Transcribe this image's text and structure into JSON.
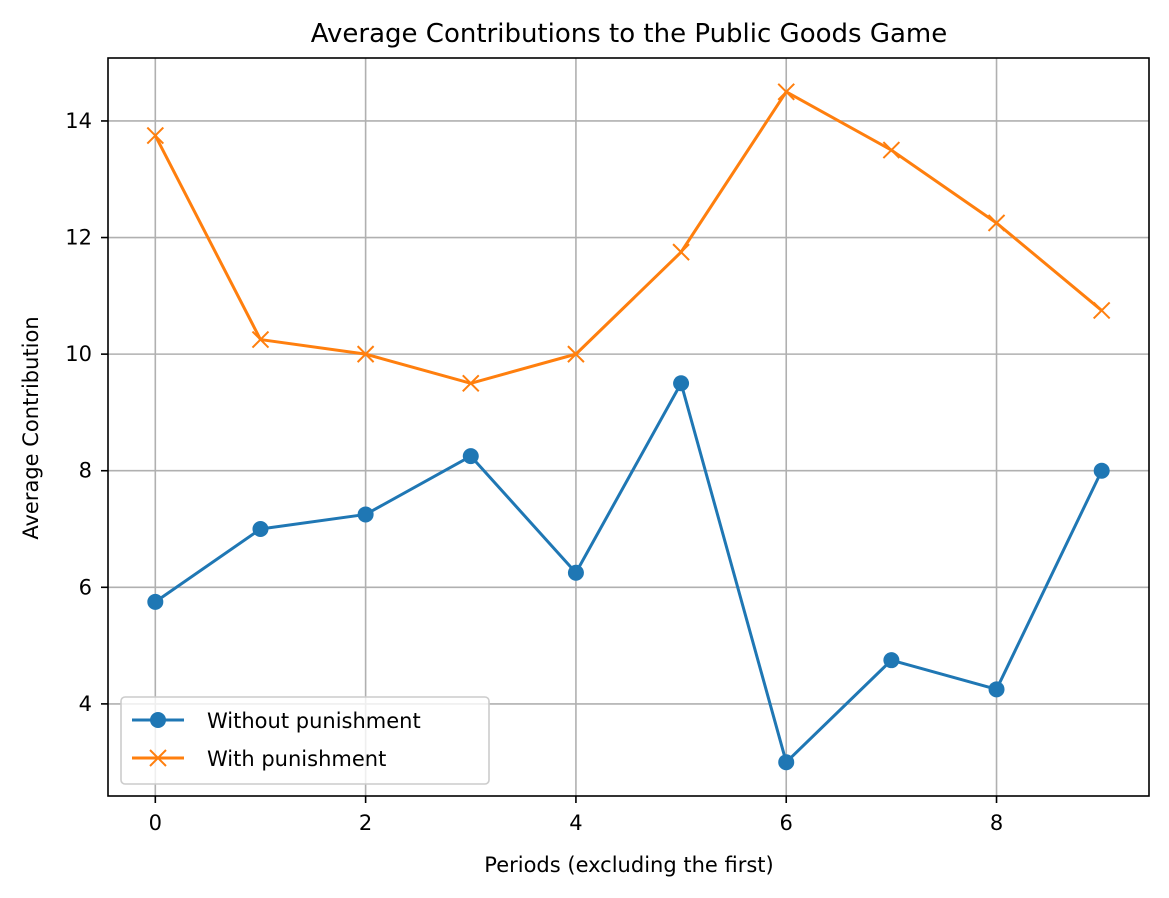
{
  "chart_data": {
    "type": "line",
    "title": "Average Contributions to the Public Goods Game",
    "xlabel": "Periods (excluding the first)",
    "ylabel": "Average Contribution",
    "x": [
      0,
      1,
      2,
      3,
      4,
      5,
      6,
      7,
      8,
      9
    ],
    "xlim": [
      -0.45,
      9.45
    ],
    "ylim": [
      2.42,
      15.08
    ],
    "xticks": [
      "0",
      "2",
      "4",
      "6",
      "8"
    ],
    "yticks": [
      "4",
      "6",
      "8",
      "10",
      "12",
      "14"
    ],
    "grid": true,
    "legend_position": "lower-left",
    "series": [
      {
        "name": "Without punishment",
        "values": [
          5.75,
          7.0,
          7.25,
          8.25,
          6.25,
          9.5,
          3.0,
          4.75,
          4.25,
          8.0
        ],
        "color": "#1f77b4",
        "marker": "circle"
      },
      {
        "name": "With punishment",
        "values": [
          13.75,
          10.25,
          10.0,
          9.5,
          10.0,
          11.75,
          14.5,
          13.5,
          12.25,
          10.75
        ],
        "color": "#ff7f0e",
        "marker": "x"
      }
    ]
  }
}
